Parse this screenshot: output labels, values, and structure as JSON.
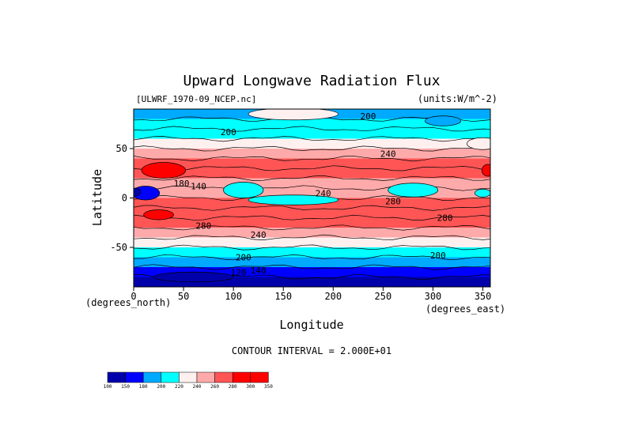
{
  "chart_data": {
    "type": "heatmap",
    "title": "Upward Longwave Radiation Flux",
    "subtitle_left": "[ULWRF_1970-09_NCEP.nc]",
    "subtitle_right": "(units:W/m^-2)",
    "xlabel": "Longitude",
    "ylabel": "Latitude",
    "x_unit_label": "(degrees_east)",
    "y_unit_label": "(degrees_north)",
    "xlim": [
      0,
      357.5
    ],
    "ylim": [
      -90,
      90
    ],
    "x_ticks": [
      0,
      50,
      100,
      150,
      200,
      250,
      300,
      350
    ],
    "y_ticks": [
      50,
      0,
      -50
    ],
    "footer": "CONTOUR INTERVAL = 2.000E+01",
    "colorbar": {
      "levels": [
        100,
        150,
        180,
        200,
        220,
        240,
        260,
        280,
        300,
        350
      ],
      "level_labels": [
        "100",
        "150",
        "180",
        "200",
        "220",
        "240",
        "260",
        "280",
        "300",
        "350"
      ],
      "colors": [
        "#0000aa",
        "#0000ff",
        "#00aaff",
        "#00ffff",
        "#fff0f0",
        "#ffaaaa",
        "#ff5555",
        "#ff0000",
        "#ff0000"
      ]
    },
    "contour_labels": [
      {
        "text": "200",
        "lon": 235,
        "lat": 83
      },
      {
        "text": "200",
        "lon": 95,
        "lat": 67
      },
      {
        "text": "240",
        "lon": 255,
        "lat": 45
      },
      {
        "text": "180",
        "lon": 48,
        "lat": 15
      },
      {
        "text": "140",
        "lon": 65,
        "lat": 12
      },
      {
        "text": "240",
        "lon": 190,
        "lat": 5
      },
      {
        "text": "280",
        "lon": 260,
        "lat": -3
      },
      {
        "text": "280",
        "lon": 312,
        "lat": -20
      },
      {
        "text": "280",
        "lon": 70,
        "lat": -28
      },
      {
        "text": "240",
        "lon": 125,
        "lat": -37
      },
      {
        "text": "200",
        "lon": 110,
        "lat": -60
      },
      {
        "text": "200",
        "lon": 305,
        "lat": -58
      },
      {
        "text": "120",
        "lon": 105,
        "lat": -75
      },
      {
        "text": "140",
        "lon": 125,
        "lat": -73
      }
    ],
    "latitude_bands": [
      {
        "lat": 90,
        "value": 190
      },
      {
        "lat": 80,
        "value": 200
      },
      {
        "lat": 70,
        "value": 205
      },
      {
        "lat": 60,
        "value": 215
      },
      {
        "lat": 50,
        "value": 235
      },
      {
        "lat": 40,
        "value": 265
      },
      {
        "lat": 30,
        "value": 280
      },
      {
        "lat": 20,
        "value": 270
      },
      {
        "lat": 10,
        "value": 245
      },
      {
        "lat": 0,
        "value": 255
      },
      {
        "lat": -10,
        "value": 265
      },
      {
        "lat": -20,
        "value": 282
      },
      {
        "lat": -30,
        "value": 270
      },
      {
        "lat": -40,
        "value": 235
      },
      {
        "lat": -50,
        "value": 215
      },
      {
        "lat": -60,
        "value": 200
      },
      {
        "lat": -70,
        "value": 175
      },
      {
        "lat": -80,
        "value": 145
      },
      {
        "lat": -90,
        "value": 130
      }
    ],
    "features": [
      {
        "lon": 30,
        "lat": 28,
        "rlon": 22,
        "rlat": 8,
        "value": 305
      },
      {
        "lon": 25,
        "lat": -17,
        "rlon": 15,
        "rlat": 5,
        "value": 305
      },
      {
        "lon": 355,
        "lat": 28,
        "rlon": 6,
        "rlat": 6,
        "value": 305
      },
      {
        "lon": 12,
        "lat": 5,
        "rlon": 14,
        "rlat": 7,
        "value": 165
      },
      {
        "lon": 2,
        "lat": 6,
        "rlon": 5,
        "rlat": 4,
        "value": 140
      },
      {
        "lon": 110,
        "lat": 8,
        "rlon": 20,
        "rlat": 8,
        "value": 210
      },
      {
        "lon": 160,
        "lat": -2,
        "rlon": 45,
        "rlat": 5,
        "value": 212
      },
      {
        "lon": 280,
        "lat": 8,
        "rlon": 25,
        "rlat": 7,
        "value": 212
      },
      {
        "lon": 350,
        "lat": 5,
        "rlon": 8,
        "rlat": 4,
        "value": 205
      },
      {
        "lon": 160,
        "lat": 85,
        "rlon": 45,
        "rlat": 6,
        "value": 232
      },
      {
        "lon": 310,
        "lat": 78,
        "rlon": 18,
        "rlat": 5,
        "value": 192
      },
      {
        "lon": 350,
        "lat": 55,
        "rlon": 16,
        "rlat": 6,
        "value": 238
      },
      {
        "lon": 60,
        "lat": -80,
        "rlon": 40,
        "rlat": 5,
        "value": 115
      }
    ]
  }
}
